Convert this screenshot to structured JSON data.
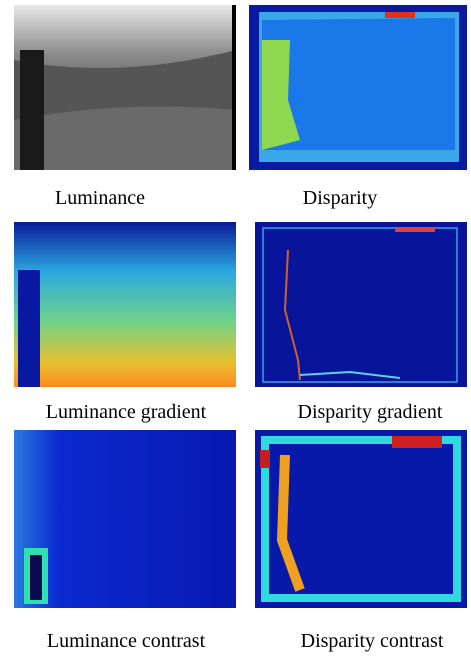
{
  "figure": {
    "captions": [
      "Luminance",
      "Disparity",
      "Luminance gradient",
      "Disparity gradient",
      "Luminance contrast",
      "Disparity contrast"
    ]
  }
}
